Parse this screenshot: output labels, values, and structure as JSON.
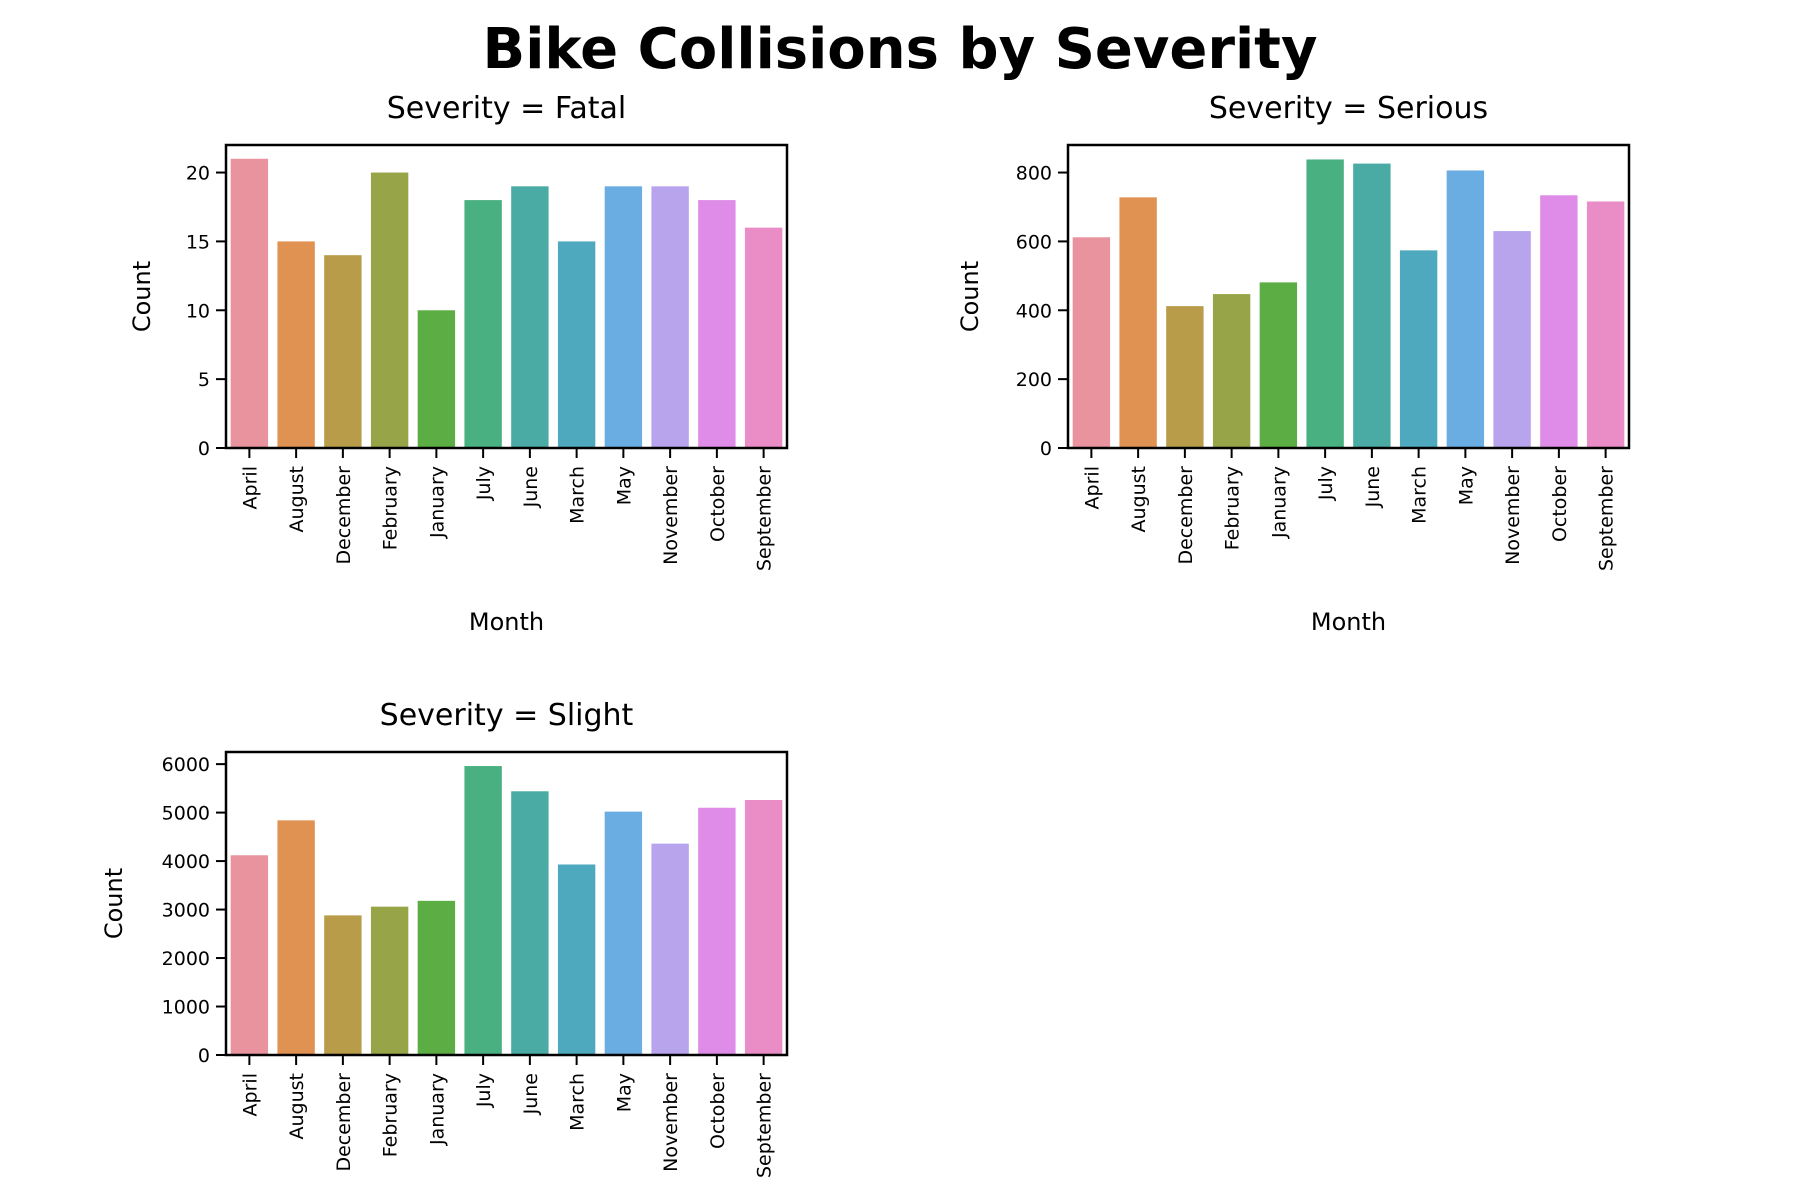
{
  "figure": {
    "title": "Bike Collisions by Severity"
  },
  "colors": [
    "#e8939e",
    "#e09253",
    "#b89c4a",
    "#98a448",
    "#5dad45",
    "#49b082",
    "#49aba4",
    "#4ea9bf",
    "#6aade2",
    "#b7a4ed",
    "#df8ce8",
    "#ea8cc6"
  ],
  "chart_data": [
    {
      "type": "bar",
      "title": "Severity = Fatal",
      "xlabel": "Month",
      "ylabel": "Count",
      "categories": [
        "April",
        "August",
        "December",
        "February",
        "January",
        "July",
        "June",
        "March",
        "May",
        "November",
        "October",
        "September"
      ],
      "values": [
        21,
        15,
        14,
        20,
        10,
        18,
        19,
        15,
        19,
        19,
        18,
        16
      ],
      "ylim": [
        0,
        22
      ],
      "yticks": [
        0,
        5,
        10,
        15,
        20
      ],
      "grid": false,
      "legend": "none"
    },
    {
      "type": "bar",
      "title": "Severity = Serious",
      "xlabel": "Month",
      "ylabel": "Count",
      "categories": [
        "April",
        "August",
        "December",
        "February",
        "January",
        "July",
        "June",
        "March",
        "May",
        "November",
        "October",
        "September"
      ],
      "values": [
        612,
        728,
        412,
        447,
        481,
        838,
        826,
        574,
        806,
        630,
        734,
        716
      ],
      "ylim": [
        0,
        880
      ],
      "yticks": [
        0,
        200,
        400,
        600,
        800
      ],
      "grid": false,
      "legend": "none"
    },
    {
      "type": "bar",
      "title": "Severity = Slight",
      "xlabel": "",
      "ylabel": "Count",
      "categories": [
        "April",
        "August",
        "December",
        "February",
        "January",
        "July",
        "June",
        "March",
        "May",
        "November",
        "October",
        "September"
      ],
      "values": [
        4120,
        4840,
        2880,
        3060,
        3180,
        5960,
        5440,
        3930,
        5020,
        4360,
        5100,
        5260
      ],
      "ylim": [
        0,
        6250
      ],
      "yticks": [
        0,
        1000,
        2000,
        3000,
        4000,
        5000,
        6000
      ],
      "grid": false,
      "legend": "none"
    }
  ]
}
